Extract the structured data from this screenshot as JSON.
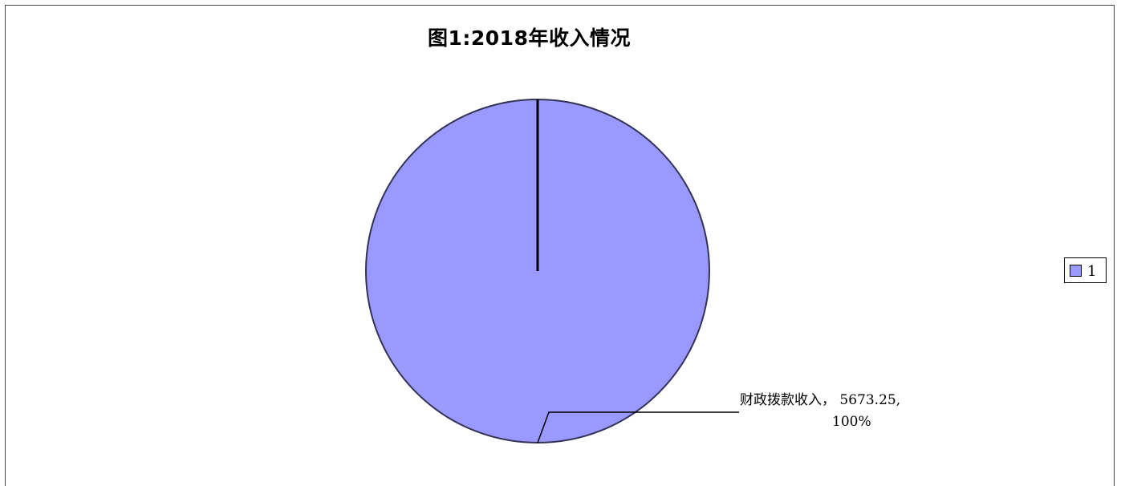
{
  "chart_data": {
    "type": "pie",
    "title": "图1:2018年收入情况",
    "slices": [
      {
        "label": "财政拨款收入",
        "value": 5673.25,
        "percent": "100%",
        "label_text_line1": "财政拨款收入， 5673.25,",
        "label_text_line2": "100%",
        "color": "#9999ff"
      }
    ],
    "legend": {
      "position": "right",
      "entries": [
        {
          "text": "1",
          "color": "#9999ff"
        }
      ]
    }
  }
}
